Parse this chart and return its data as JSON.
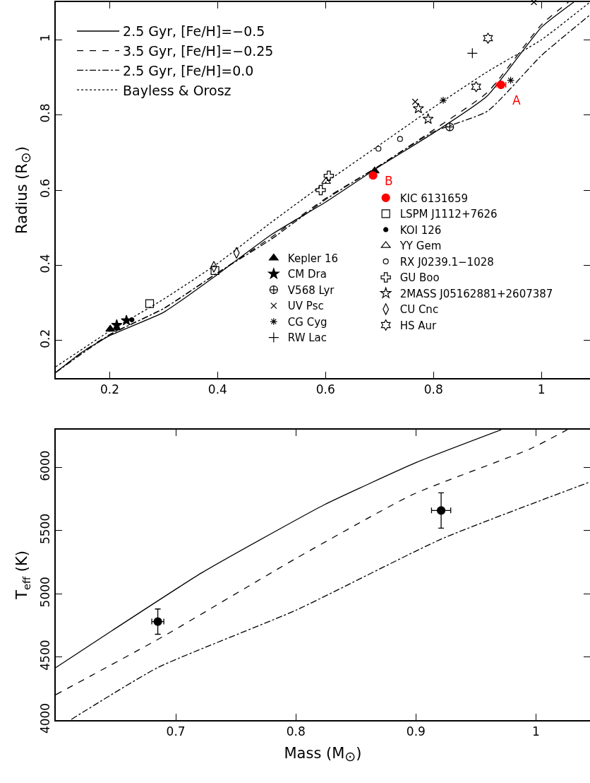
{
  "chart_data": [
    {
      "type": "scatter",
      "ylabel": "Radius (R$_{⊙}$)",
      "xlim": [
        0.1,
        1.09
      ],
      "ylim": [
        0.1,
        1.1
      ],
      "xticks": [
        0.2,
        0.4,
        0.6,
        0.8,
        1
      ],
      "yticks": [
        0.2,
        0.4,
        0.6,
        0.8,
        1
      ],
      "grid": false,
      "legend": "top left",
      "annotations": [
        {
          "text": "A",
          "x": 0.925,
          "y": 0.88
        },
        {
          "text": "B",
          "x": 0.688,
          "y": 0.639
        }
      ],
      "series": [
        {
          "name": "2.5 Gyr, [Fe/H]=−0.5",
          "type": "line",
          "line_style": "solid",
          "color": "#000000",
          "x": [
            0.1,
            0.15,
            0.2,
            0.3,
            0.4,
            0.5,
            0.6,
            0.7,
            0.8,
            0.9,
            1.0,
            1.06
          ],
          "values": [
            0.115,
            0.17,
            0.213,
            0.275,
            0.376,
            0.482,
            0.568,
            0.663,
            0.752,
            0.851,
            1.033,
            1.1
          ]
        },
        {
          "name": "3.5 Gyr, [Fe/H]=−0.25",
          "type": "line",
          "line_style": "dashed",
          "color": "#000000",
          "x": [
            0.1,
            0.15,
            0.2,
            0.3,
            0.4,
            0.5,
            0.6,
            0.7,
            0.8,
            0.9,
            1.0,
            1.05
          ],
          "values": [
            0.115,
            0.17,
            0.216,
            0.285,
            0.38,
            0.475,
            0.578,
            0.665,
            0.76,
            0.86,
            1.04,
            1.1
          ]
        },
        {
          "name": "2.5 Gyr, [Fe/H]=0.0",
          "type": "line",
          "line_style": "dashdot",
          "color": "#000000",
          "x": [
            0.1,
            0.2,
            0.3,
            0.4,
            0.5,
            0.6,
            0.7,
            0.8,
            0.9,
            1.0,
            1.09
          ],
          "values": [
            0.115,
            0.215,
            0.285,
            0.38,
            0.47,
            0.575,
            0.665,
            0.755,
            0.81,
            0.958,
            1.066
          ]
        },
        {
          "name": "Bayless & Orosz",
          "type": "line",
          "line_style": "dotted",
          "color": "#000000",
          "x": [
            0.1,
            0.2,
            0.3,
            0.4,
            0.5,
            0.6,
            0.7,
            0.8,
            0.9,
            1.0,
            1.09
          ],
          "values": [
            0.13,
            0.225,
            0.31,
            0.405,
            0.515,
            0.62,
            0.72,
            0.82,
            0.915,
            1.0,
            1.1
          ]
        },
        {
          "name": "Kepler 16",
          "marker": "triangle",
          "color": "#000000",
          "x": [
            0.201,
            0.691
          ],
          "values": [
            0.23,
            0.651
          ]
        },
        {
          "name": "CM Dra",
          "marker": "star",
          "color": "#000000",
          "x": [
            0.213,
            0.231
          ],
          "values": [
            0.241,
            0.253
          ]
        },
        {
          "name": "V568 Lyr",
          "color": "#000000",
          "x": [
            0.83
          ],
          "values": [
            0.768
          ]
        },
        {
          "name": "UV Psc",
          "marker": "x",
          "color": "#000000",
          "x": [
            0.766,
            0.986
          ],
          "values": [
            0.835,
            1.1
          ]
        },
        {
          "name": "CG Cyg",
          "color": "#000000",
          "x": [
            0.818,
            0.943
          ],
          "values": [
            0.839,
            0.892
          ]
        },
        {
          "name": "RW Lac",
          "marker": "plus",
          "color": "#000000",
          "x": [
            0.872
          ],
          "values": [
            0.964
          ]
        },
        {
          "name": "KIC 6131659",
          "marker": "circle",
          "color": "#ff0000",
          "x": [
            0.688,
            0.925
          ],
          "values": [
            0.639,
            0.88
          ],
          "xerrors": [
            null,
            0.009
          ]
        },
        {
          "name": "LSPM J1112+7626",
          "marker": "square-open",
          "color": "#000000",
          "x": [
            0.274,
            0.395
          ],
          "values": [
            0.298,
            0.386
          ]
        },
        {
          "name": "KOI 126",
          "marker": "circle-small",
          "color": "#000000",
          "x": [
            0.213,
            0.241
          ],
          "values": [
            0.232,
            0.255
          ]
        },
        {
          "name": "YY Gem",
          "marker": "triangle-open",
          "color": "#000000",
          "x": [
            0.601
          ],
          "values": [
            0.623
          ]
        },
        {
          "name": "RX J0239.1−1028",
          "marker": "circle-open",
          "color": "#000000",
          "x": [
            0.698,
            0.738
          ],
          "values": [
            0.71,
            0.736
          ]
        },
        {
          "name": "GU Boo",
          "marker": "cross-open",
          "color": "#000000",
          "x": [
            0.591,
            0.606
          ],
          "values": [
            0.6,
            0.638
          ]
        },
        {
          "name": "2MASS J05162881+2607387",
          "marker": "star-open",
          "color": "#000000",
          "x": [
            0.772,
            0.79
          ],
          "values": [
            0.817,
            0.789
          ]
        },
        {
          "name": "CU Cnc",
          "marker": "diamond-open",
          "color": "#000000",
          "x": [
            0.393,
            0.435
          ],
          "values": [
            0.396,
            0.433
          ]
        },
        {
          "name": "HS Aur",
          "color": "#000000",
          "x": [
            0.879,
            0.901
          ],
          "values": [
            0.875,
            1.004
          ]
        }
      ]
    },
    {
      "type": "scatter",
      "xlabel": "Mass (M$_{⊙}$)",
      "ylabel": "T$_{eff}$ (K)",
      "xlim": [
        0.6,
        1.045
      ],
      "ylim": [
        4000,
        6300
      ],
      "xticks": [
        0.7,
        0.8,
        0.9,
        1
      ],
      "yticks": [
        4000,
        4500,
        5000,
        5500,
        6000
      ],
      "grid": false,
      "series": [
        {
          "type": "line",
          "line_style": "solid",
          "color": "#000000",
          "x": [
            0.6,
            0.647,
            0.721,
            0.786,
            0.824,
            0.901,
            0.971
          ],
          "values": [
            4416,
            4709,
            5163,
            5511,
            5707,
            6043,
            6299
          ]
        },
        {
          "type": "line",
          "line_style": "dashed",
          "color": "#000000",
          "x": [
            0.6,
            0.689,
            0.8,
            0.897,
            0.995,
            1.026
          ],
          "values": [
            4201,
            4660,
            5280,
            5785,
            6147,
            6299
          ]
        },
        {
          "type": "line",
          "line_style": "dashdot",
          "color": "#000000",
          "x": [
            0.613,
            0.685,
            0.8,
            0.921,
            1.045
          ],
          "values": [
            4006,
            4416,
            4870,
            5433,
            5886
          ]
        },
        {
          "marker": "circle",
          "color": "#000000",
          "x": [
            0.685,
            0.921
          ],
          "values": [
            4780,
            5660
          ],
          "xerrors": [
            0.005,
            0.008
          ],
          "errors": [
            100,
            140
          ]
        }
      ]
    }
  ]
}
